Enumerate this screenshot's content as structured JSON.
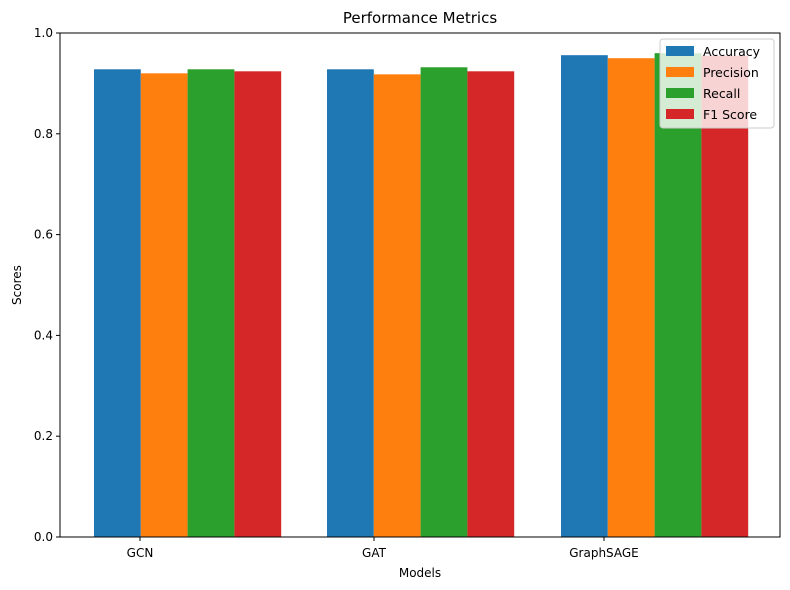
{
  "chart_data": {
    "type": "bar",
    "title": "Performance Metrics",
    "xlabel": "Models",
    "ylabel": "Scores",
    "categories": [
      "GCN",
      "GAT",
      "GraphSAGE"
    ],
    "ylim": [
      0,
      1.0
    ],
    "yticks": [
      "0.0",
      "0.2",
      "0.4",
      "0.6",
      "0.8",
      "1.0"
    ],
    "grid": false,
    "legend_position": "top-right",
    "series": [
      {
        "name": "Accuracy",
        "color": "#1f77b4",
        "values": [
          0.928,
          0.928,
          0.956
        ]
      },
      {
        "name": "Precision",
        "color": "#ff7f0e",
        "values": [
          0.92,
          0.918,
          0.95
        ]
      },
      {
        "name": "Recall",
        "color": "#2ca02c",
        "values": [
          0.928,
          0.932,
          0.96
        ]
      },
      {
        "name": "F1 Score",
        "color": "#d62728",
        "values": [
          0.924,
          0.924,
          0.955
        ]
      }
    ]
  }
}
